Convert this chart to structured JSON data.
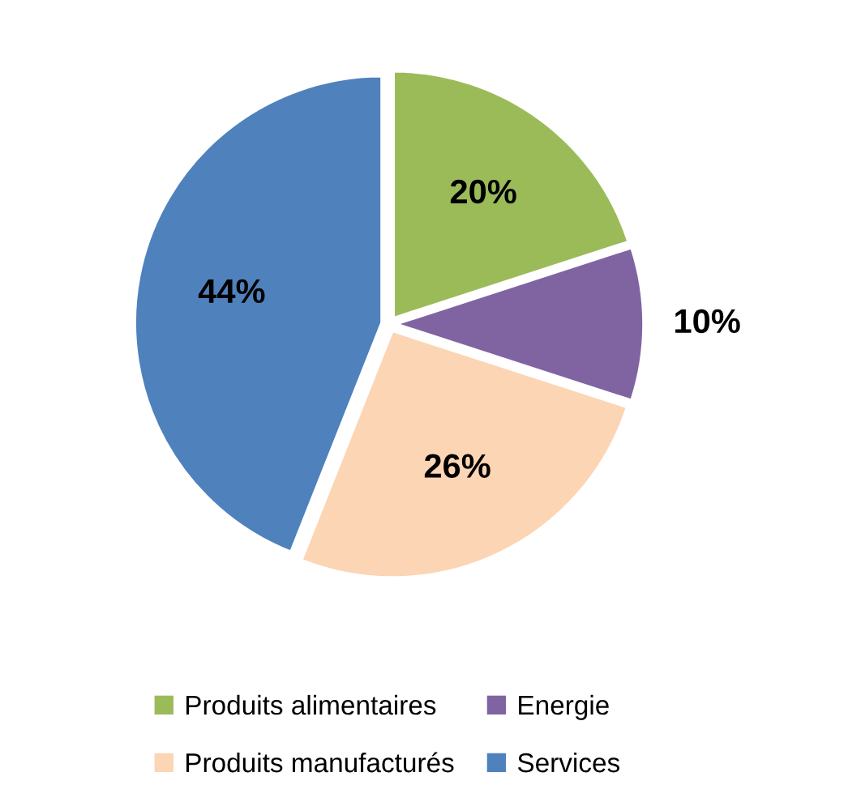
{
  "chart_data": {
    "type": "pie",
    "categories": [
      "Produits alimentaires",
      "Energie",
      "Produits manufacturés",
      "Services"
    ],
    "values": [
      20,
      10,
      26,
      44
    ],
    "colors": [
      "#9bbb59",
      "#8064a2",
      "#fcd5b5",
      "#4f81bd"
    ],
    "value_labels": [
      "20%",
      "10%",
      "26%",
      "44%"
    ],
    "legend": "bottom"
  }
}
